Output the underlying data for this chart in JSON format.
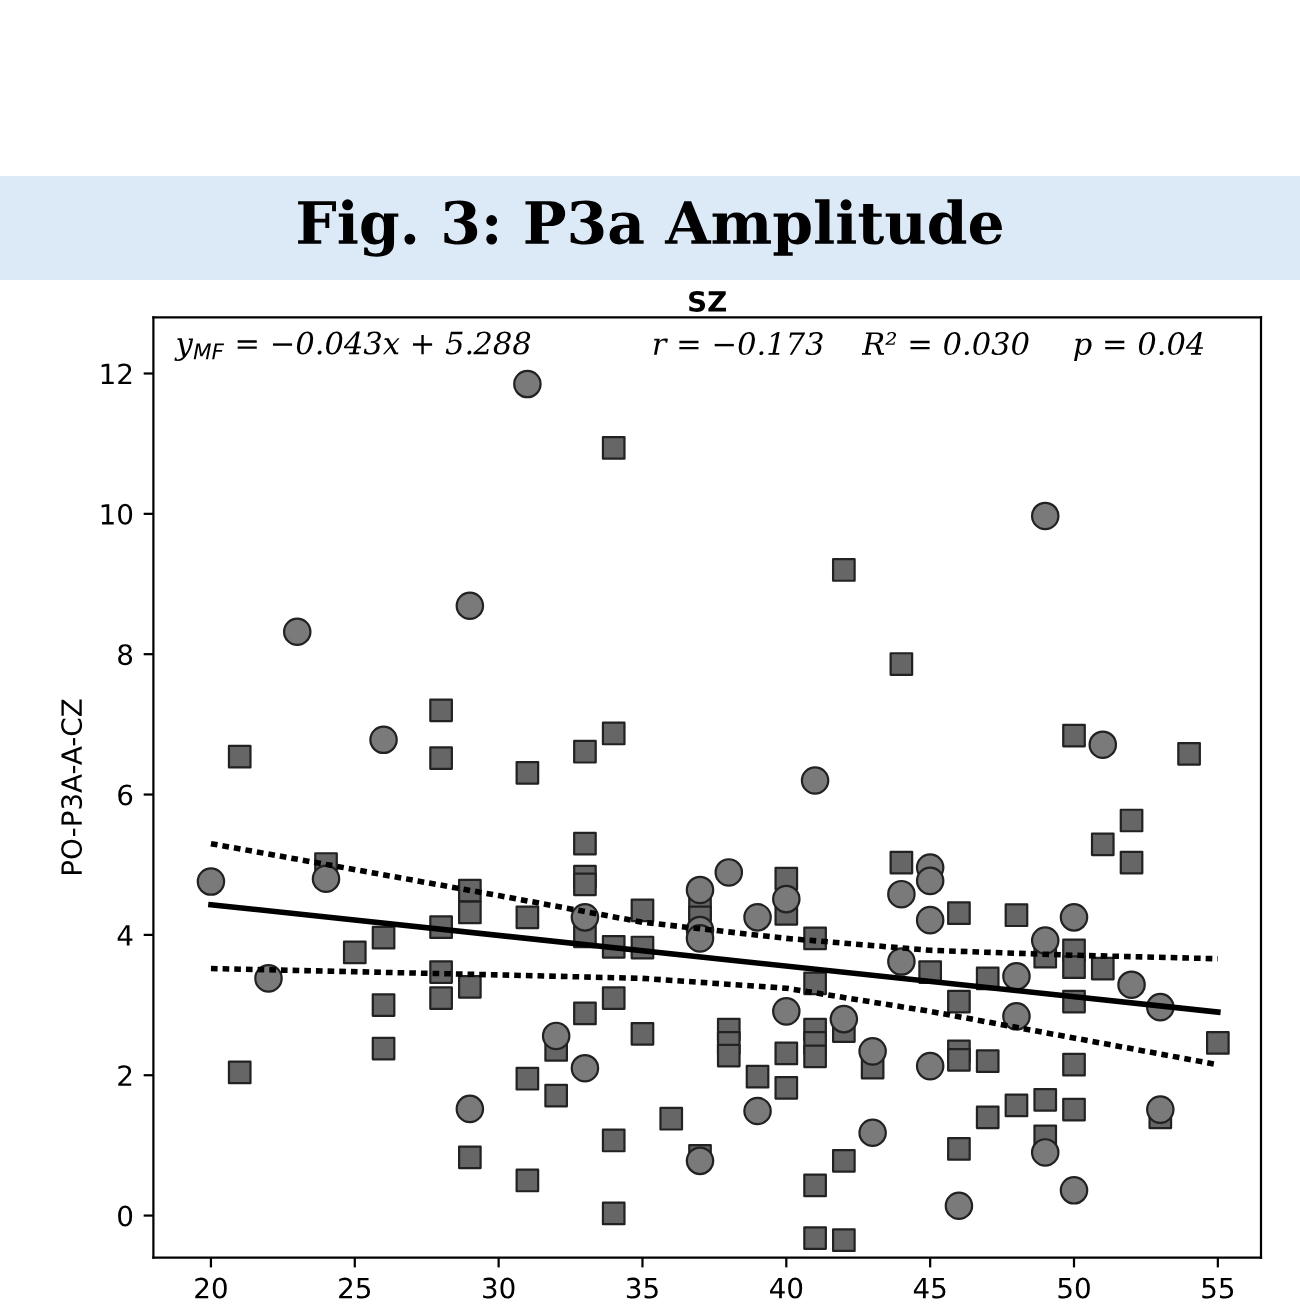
{
  "chart_data": {
    "type": "scatter",
    "title": "Fig. 3: P3a Amplitude",
    "subtitle": "SZ",
    "ylabel": "PO-P3A-A-CZ",
    "annotations": [
      "y$_{MF}$ = −0.043x + 5.288",
      "r = −0.173",
      "R² = 0.030",
      "p = 0.04"
    ],
    "xlim": [
      18,
      56.5
    ],
    "ylim": [
      -0.6,
      12.8
    ],
    "xticks": [
      20,
      25,
      30,
      35,
      40,
      45,
      50,
      55
    ],
    "yticks": [
      0,
      2,
      4,
      6,
      8,
      10,
      12
    ],
    "grid": false,
    "legend": false,
    "series": [
      {
        "marker": "circle",
        "color": "#7a7a7a",
        "x": [
          20,
          22,
          24,
          26,
          29,
          32,
          33,
          33,
          31,
          23,
          29,
          49,
          51,
          41,
          38,
          37,
          37,
          37,
          39,
          40,
          40,
          39,
          37,
          42,
          43,
          43,
          44,
          44,
          45,
          45,
          45,
          45,
          46,
          48,
          48,
          49,
          49,
          50,
          50,
          52,
          53,
          53
        ],
        "values": [
          4.76,
          3.38,
          4.8,
          6.78,
          1.52,
          2.56,
          2.1,
          4.25,
          11.85,
          8.32,
          8.69,
          9.97,
          6.71,
          6.2,
          4.89,
          4.64,
          4.07,
          3.95,
          4.25,
          4.51,
          2.91,
          1.49,
          0.78,
          2.8,
          2.34,
          1.18,
          4.58,
          3.62,
          4.96,
          4.77,
          4.21,
          2.13,
          0.14,
          3.41,
          2.84,
          3.92,
          0.9,
          4.25,
          0.36,
          3.29,
          2.97,
          1.51
        ]
      },
      {
        "marker": "square",
        "color": "#666666",
        "x": [
          21,
          21,
          24,
          25,
          26,
          26,
          26,
          28,
          28,
          28,
          28,
          28,
          29,
          29,
          29,
          29,
          31,
          31,
          31,
          31,
          32,
          32,
          33,
          33,
          33,
          33,
          33,
          33,
          34,
          34,
          34,
          34,
          34,
          34,
          35,
          35,
          35,
          36,
          42,
          44,
          50,
          54,
          37,
          37,
          37,
          38,
          38,
          38,
          39,
          40,
          40,
          40,
          40,
          41,
          41,
          41,
          41,
          41,
          41,
          41,
          42,
          42,
          42,
          43,
          44,
          45,
          46,
          46,
          46,
          46,
          46,
          47,
          47,
          47,
          48,
          48,
          49,
          49,
          49,
          50,
          50,
          50,
          50,
          50,
          51,
          51,
          52,
          52,
          53,
          55
        ],
        "values": [
          6.54,
          2.04,
          5.01,
          3.75,
          3.96,
          3.0,
          2.38,
          7.2,
          6.52,
          4.11,
          3.47,
          3.1,
          4.63,
          4.32,
          3.26,
          0.83,
          6.31,
          4.25,
          1.95,
          0.5,
          2.36,
          1.71,
          6.61,
          5.3,
          4.83,
          4.72,
          3.98,
          2.88,
          10.94,
          6.87,
          3.83,
          3.1,
          1.07,
          0.03,
          4.35,
          3.82,
          2.59,
          1.38,
          9.2,
          7.86,
          6.84,
          6.58,
          4.37,
          4.25,
          0.85,
          2.65,
          2.46,
          2.28,
          1.98,
          4.8,
          4.3,
          2.31,
          1.82,
          3.95,
          3.31,
          2.65,
          2.46,
          2.27,
          0.43,
          -0.32,
          2.63,
          0.78,
          -0.35,
          2.11,
          5.03,
          3.47,
          4.31,
          3.05,
          2.34,
          2.22,
          0.95,
          3.38,
          2.2,
          1.4,
          4.28,
          1.57,
          3.69,
          1.65,
          1.13,
          3.78,
          3.54,
          3.05,
          2.15,
          1.51,
          3.52,
          5.29,
          5.63,
          5.03,
          1.4,
          2.46
        ]
      },
      {
        "type": "line",
        "line_style": "solid",
        "color": "#000000",
        "x": [
          20,
          55
        ],
        "values": [
          4.43,
          2.9
        ]
      },
      {
        "type": "line",
        "line_style": "dotted",
        "color": "#000000",
        "x": [
          20,
          30,
          35,
          40,
          45,
          50,
          55
        ],
        "values": [
          5.3,
          4.56,
          4.18,
          3.95,
          3.78,
          3.71,
          3.66
        ]
      },
      {
        "type": "line",
        "line_style": "dotted",
        "color": "#000000",
        "x": [
          20,
          30,
          35,
          40,
          45,
          50,
          55
        ],
        "values": [
          3.52,
          3.43,
          3.38,
          3.24,
          2.91,
          2.53,
          2.15
        ]
      }
    ]
  }
}
